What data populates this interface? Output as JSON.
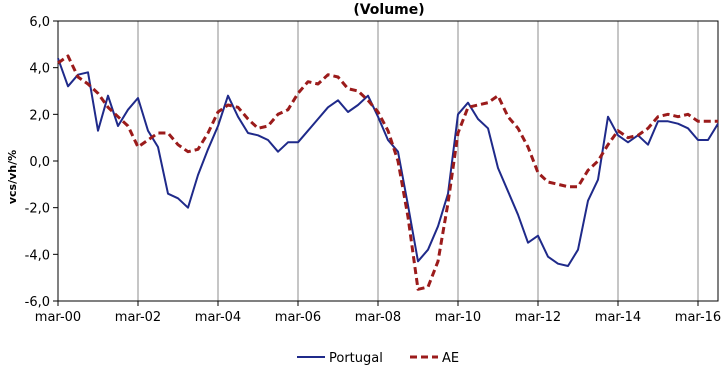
{
  "chart_data": {
    "type": "line",
    "title": "(Volume)",
    "xlabel": "",
    "ylabel": "vcs/vh/%",
    "ylim": [
      -6,
      6
    ],
    "yticks": [
      "6,0",
      "4,0",
      "2,0",
      "0,0",
      "-2,0",
      "-4,0",
      "-6,0"
    ],
    "xticks": [
      "mar-00",
      "mar-02",
      "mar-04",
      "mar-06",
      "mar-08",
      "mar-10",
      "mar-12",
      "mar-14",
      "mar-16"
    ],
    "xrange_quarters": [
      0,
      66
    ],
    "grid": "vertical",
    "legend": "bottom",
    "series": [
      {
        "name": "Portugal",
        "color": "#1f2a8a",
        "style": "solid",
        "values": [
          4.4,
          3.2,
          3.7,
          3.8,
          1.3,
          2.8,
          1.5,
          2.2,
          2.7,
          1.3,
          0.6,
          -1.4,
          -1.6,
          -2.0,
          -0.6,
          0.5,
          1.5,
          2.8,
          1.9,
          1.2,
          1.1,
          0.9,
          0.4,
          0.8,
          0.8,
          1.3,
          1.8,
          2.3,
          2.6,
          2.1,
          2.4,
          2.8,
          1.9,
          0.9,
          0.4,
          -1.9,
          -4.3,
          -3.8,
          -2.8,
          -1.4,
          2.0,
          2.5,
          1.8,
          1.4,
          -0.3,
          -1.3,
          -2.3,
          -3.5,
          -3.2,
          -4.1,
          -4.4,
          -4.5,
          -3.8,
          -1.7,
          -0.8,
          1.9,
          1.1,
          0.8,
          1.1,
          0.7,
          1.7,
          1.7,
          1.6,
          1.4,
          0.9,
          0.9,
          1.6
        ]
      },
      {
        "name": "AE",
        "color": "#9b1b1b",
        "style": "dashed",
        "values": [
          4.2,
          4.5,
          3.6,
          3.3,
          2.9,
          2.3,
          1.9,
          1.5,
          0.6,
          0.9,
          1.2,
          1.2,
          0.7,
          0.4,
          0.5,
          1.2,
          2.1,
          2.4,
          2.3,
          1.8,
          1.4,
          1.5,
          2.0,
          2.2,
          2.9,
          3.4,
          3.3,
          3.7,
          3.6,
          3.1,
          3.0,
          2.6,
          2.1,
          1.3,
          0.0,
          -2.4,
          -5.5,
          -5.4,
          -4.3,
          -1.8,
          1.2,
          2.3,
          2.4,
          2.5,
          2.8,
          1.9,
          1.4,
          0.6,
          -0.5,
          -0.9,
          -1.0,
          -1.1,
          -1.1,
          -0.4,
          0.0,
          0.7,
          1.3,
          1.0,
          1.1,
          1.4,
          1.9,
          2.0,
          1.9,
          2.0,
          1.7,
          1.7,
          1.7
        ]
      }
    ]
  }
}
